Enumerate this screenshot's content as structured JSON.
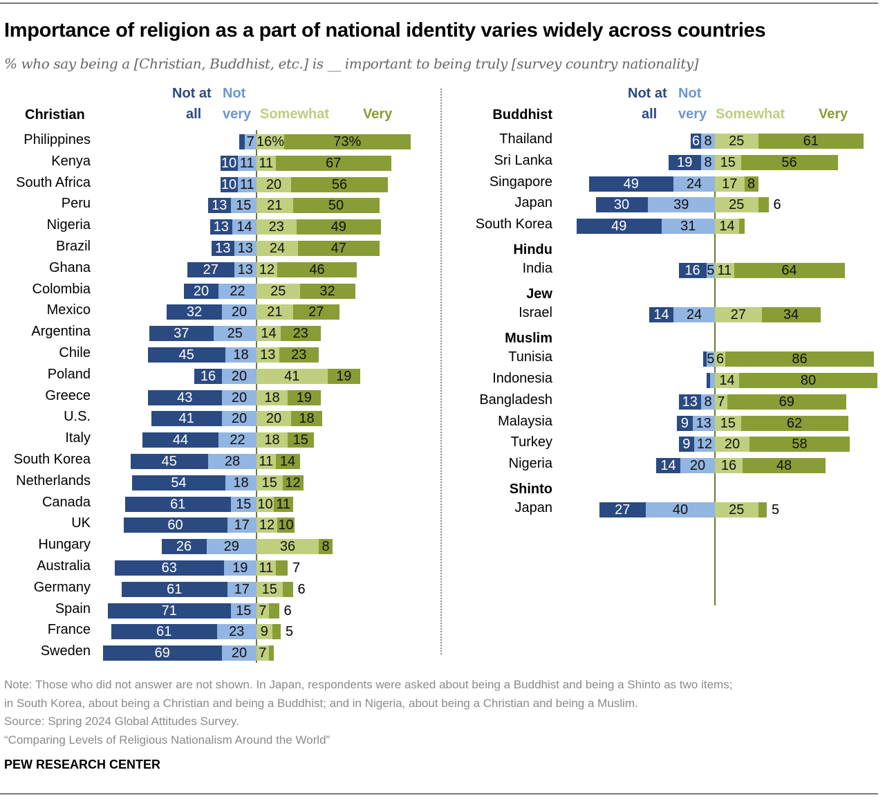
{
  "title": "Importance of religion as a part of national identity varies widely across countries",
  "subtitle": "% who say being a [Christian, Buddhist, etc.] is __ important to being truly [survey country nationality]",
  "legend": {
    "not_at_all_line1": "Not at",
    "not_at_all_line2": "all",
    "not_very_line1": "Not",
    "not_very_line2": "very",
    "somewhat": "Somewhat",
    "very": "Very"
  },
  "colors": {
    "not_at_all": "#2b4a82",
    "not_very": "#92b5e1",
    "somewhat": "#bfcf7e",
    "very": "#899d36",
    "axis": "#6d7a2a"
  },
  "chart_data": {
    "type": "bar",
    "subtype": "diverging-stacked-horizontal",
    "title": "Importance of religion as a part of national identity varies widely across countries",
    "subtitle": "% who say being a [Christian, Buddhist, etc.] is __ important to being truly [survey country nationality]",
    "series_names": [
      "Not at all",
      "Not very",
      "Somewhat",
      "Very"
    ],
    "units": "percent",
    "panels": [
      {
        "side": "left",
        "groups": [
          {
            "group": "Christian",
            "rows": [
              {
                "country": "Philippines",
                "values": [
                  3,
                  7,
                  16,
                  73
                ],
                "labels": [
                  "",
                  "7",
                  "16%",
                  "73%"
                ]
              },
              {
                "country": "Kenya",
                "values": [
                  10,
                  11,
                  11,
                  67
                ]
              },
              {
                "country": "South Africa",
                "values": [
                  10,
                  11,
                  20,
                  56
                ]
              },
              {
                "country": "Peru",
                "values": [
                  13,
                  15,
                  21,
                  50
                ]
              },
              {
                "country": "Nigeria",
                "values": [
                  13,
                  14,
                  23,
                  49
                ]
              },
              {
                "country": "Brazil",
                "values": [
                  13,
                  13,
                  24,
                  47
                ]
              },
              {
                "country": "Ghana",
                "values": [
                  27,
                  13,
                  12,
                  46
                ]
              },
              {
                "country": "Colombia",
                "values": [
                  20,
                  22,
                  25,
                  32
                ]
              },
              {
                "country": "Mexico",
                "values": [
                  32,
                  20,
                  21,
                  27
                ]
              },
              {
                "country": "Argentina",
                "values": [
                  37,
                  25,
                  14,
                  23
                ]
              },
              {
                "country": "Chile",
                "values": [
                  45,
                  18,
                  13,
                  23
                ]
              },
              {
                "country": "Poland",
                "values": [
                  16,
                  20,
                  41,
                  19
                ]
              },
              {
                "country": "Greece",
                "values": [
                  43,
                  20,
                  18,
                  19
                ]
              },
              {
                "country": "U.S.",
                "values": [
                  41,
                  20,
                  20,
                  18
                ]
              },
              {
                "country": "Italy",
                "values": [
                  44,
                  22,
                  18,
                  15
                ]
              },
              {
                "country": "South Korea",
                "values": [
                  45,
                  28,
                  11,
                  14
                ]
              },
              {
                "country": "Netherlands",
                "values": [
                  54,
                  18,
                  15,
                  12
                ]
              },
              {
                "country": "Canada",
                "values": [
                  61,
                  15,
                  10,
                  11
                ]
              },
              {
                "country": "UK",
                "values": [
                  60,
                  17,
                  12,
                  10
                ]
              },
              {
                "country": "Hungary",
                "values": [
                  26,
                  29,
                  36,
                  8
                ]
              },
              {
                "country": "Australia",
                "values": [
                  63,
                  19,
                  11,
                  7
                ],
                "very_outside": true
              },
              {
                "country": "Germany",
                "values": [
                  61,
                  17,
                  15,
                  6
                ],
                "very_outside": true
              },
              {
                "country": "Spain",
                "values": [
                  71,
                  15,
                  7,
                  6
                ],
                "very_outside": true
              },
              {
                "country": "France",
                "values": [
                  61,
                  23,
                  9,
                  5
                ],
                "very_outside": true
              },
              {
                "country": "Sweden",
                "values": [
                  69,
                  20,
                  7,
                  3
                ],
                "labels": [
                  "69",
                  "20",
                  "7",
                  ""
                ]
              }
            ]
          }
        ]
      },
      {
        "side": "right",
        "groups": [
          {
            "group": "Buddhist",
            "rows": [
              {
                "country": "Thailand",
                "values": [
                  6,
                  8,
                  25,
                  61
                ]
              },
              {
                "country": "Sri Lanka",
                "values": [
                  19,
                  8,
                  15,
                  56
                ]
              },
              {
                "country": "Singapore",
                "values": [
                  49,
                  24,
                  17,
                  8
                ]
              },
              {
                "country": "Japan",
                "values": [
                  30,
                  39,
                  25,
                  6
                ],
                "very_outside": true
              },
              {
                "country": "South Korea",
                "values": [
                  49,
                  31,
                  14,
                  3
                ],
                "labels": [
                  "49",
                  "31",
                  "14",
                  ""
                ]
              }
            ]
          },
          {
            "group": "Hindu",
            "rows": [
              {
                "country": "India",
                "values": [
                  16,
                  5,
                  11,
                  64
                ]
              }
            ]
          },
          {
            "group": "Jew",
            "rows": [
              {
                "country": "Israel",
                "values": [
                  14,
                  24,
                  27,
                  34
                ]
              }
            ]
          },
          {
            "group": "Muslim",
            "rows": [
              {
                "country": "Tunisia",
                "values": [
                  2,
                  5,
                  6,
                  86
                ],
                "labels": [
                  "",
                  "5",
                  "6",
                  "86"
                ]
              },
              {
                "country": "Indonesia",
                "values": [
                  2,
                  3,
                  14,
                  80
                ],
                "labels": [
                  "",
                  "",
                  "14",
                  "80"
                ]
              },
              {
                "country": "Bangladesh",
                "values": [
                  13,
                  8,
                  7,
                  69
                ]
              },
              {
                "country": "Malaysia",
                "values": [
                  9,
                  13,
                  15,
                  62
                ]
              },
              {
                "country": "Turkey",
                "values": [
                  9,
                  12,
                  20,
                  58
                ]
              },
              {
                "country": "Nigeria",
                "values": [
                  14,
                  20,
                  16,
                  48
                ]
              }
            ]
          },
          {
            "group": "Shinto",
            "rows": [
              {
                "country": "Japan",
                "values": [
                  27,
                  40,
                  25,
                  5
                ],
                "very_outside": true
              }
            ]
          }
        ]
      }
    ]
  },
  "footer": {
    "note_line1": "Note: Those who did not answer are not shown. In Japan, respondents were asked about being a Buddhist and being a Shinto as two items;",
    "note_line2": "in South Korea, about being a Christian and being a Buddhist; and in Nigeria, about being a Christian and being a Muslim.",
    "source": "Source: Spring 2024 Global Attitudes Survey.",
    "report": "“Comparing Levels of Religious Nationalism Around the World”",
    "brand": "PEW RESEARCH CENTER"
  }
}
